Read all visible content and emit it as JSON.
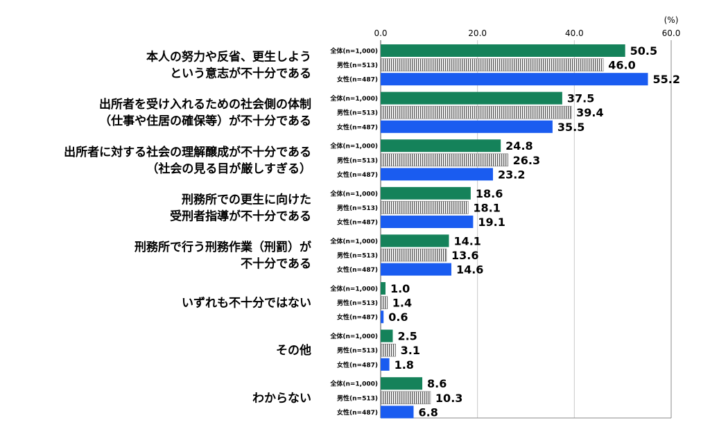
{
  "chart_data": {
    "type": "bar",
    "orientation": "horizontal",
    "unit": "(%)",
    "xlim": [
      0,
      60
    ],
    "ticks": [
      "0.0",
      "20.0",
      "40.0",
      "60.0"
    ],
    "grid": true,
    "categories": [
      [
        "本人の努力や反省、更生しよう",
        "という意志が不十分である"
      ],
      [
        "出所者を受け入れるための社会側の体制",
        "（仕事や住居の確保等）が不十分である"
      ],
      [
        "出所者に対する社会の理解醸成が不十分である",
        "（社会の見る目が厳しすぎる）"
      ],
      [
        "刑務所での更生に向けた",
        "受刑者指導が不十分である"
      ],
      [
        "刑務所で行う刑務作業（刑罰）が",
        "不十分である"
      ],
      [
        "いずれも不十分ではない"
      ],
      [
        "その他"
      ],
      [
        "わからない"
      ]
    ],
    "series": [
      {
        "name": "全体(n=1,000)",
        "color": "#15825a",
        "pattern": "solid",
        "values": [
          50.5,
          37.5,
          24.8,
          18.6,
          14.1,
          1.0,
          2.5,
          8.6
        ],
        "labels": [
          "50.5",
          "37.5",
          "24.8",
          "18.6",
          "14.1",
          "1.0",
          "2.5",
          "8.6"
        ]
      },
      {
        "name": "男性(n=513)",
        "color": "#555555",
        "pattern": "vertical-stripes",
        "values": [
          46.0,
          39.4,
          26.3,
          18.1,
          13.6,
          1.4,
          3.1,
          10.3
        ],
        "labels": [
          "46.0",
          "39.4",
          "26.3",
          "18.1",
          "13.6",
          "1.4",
          "3.1",
          "10.3"
        ]
      },
      {
        "name": "女性(n=487)",
        "color": "#1a5cf0",
        "pattern": "solid",
        "values": [
          55.2,
          35.5,
          23.2,
          19.1,
          14.6,
          0.6,
          1.8,
          6.8
        ],
        "labels": [
          "55.2",
          "35.5",
          "23.2",
          "19.1",
          "14.6",
          "0.6",
          "1.8",
          "6.8"
        ]
      }
    ]
  }
}
